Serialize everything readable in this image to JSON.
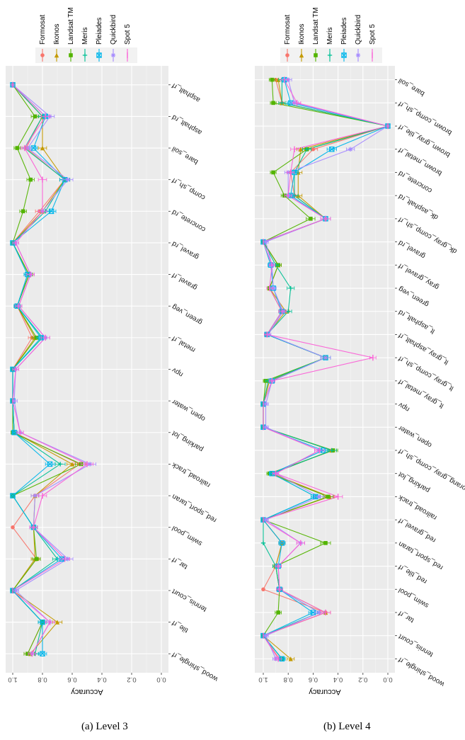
{
  "figure": {
    "legend_title": "",
    "legend_items": [
      {
        "name": "Formosat",
        "color": "#F8766D",
        "marker": "circle"
      },
      {
        "name": "Ikonos",
        "color": "#C49A00",
        "marker": "triangle"
      },
      {
        "name": "Landsat TM",
        "color": "#53B400",
        "marker": "square"
      },
      {
        "name": "Meris",
        "color": "#00C094",
        "marker": "plus"
      },
      {
        "name": "Pleiades",
        "color": "#00B6EB",
        "marker": "boxed-cross"
      },
      {
        "name": "Quickbird",
        "color": "#A58AFF",
        "marker": "asterisk"
      },
      {
        "name": "Spot 5",
        "color": "#FB61D7",
        "marker": "bar"
      }
    ]
  },
  "chart_data": [
    {
      "type": "line",
      "caption": "(a) Level 3",
      "ylabel": "Accuracy",
      "ylim": [
        0,
        1
      ],
      "yticks": [
        "0.0",
        "0.2",
        "0.4",
        "0.6",
        "0.8",
        "1.0"
      ],
      "grid": true,
      "error_bars": true,
      "categories": [
        "asphalt_rf",
        "asphalt_rd",
        "bare_soil",
        "comp_sh_rf",
        "concrete_rd",
        "gravel_rd",
        "gravel_rf",
        "green_veg",
        "metal_rf",
        "npv",
        "open_water",
        "parking_lot",
        "railroad_track",
        "red_sport_taran",
        "swim_pool",
        "tar_rf",
        "tennis_court",
        "tile_rf",
        "wood_shingle_rf"
      ],
      "series": [
        {
          "name": "Formosat",
          "values": [
            1.0,
            0.8,
            0.91,
            0.65,
            0.82,
            1.0,
            0.89,
            0.97,
            0.87,
            1.0,
            1.0,
            0.99,
            0.55,
            0.85,
            1.0,
            0.84,
            1.0,
            0.8,
            0.9
          ]
        },
        {
          "name": "Ikonos",
          "values": [
            1.0,
            0.8,
            0.8,
            0.65,
            0.8,
            1.0,
            0.89,
            0.97,
            0.85,
            1.0,
            1.0,
            0.99,
            0.6,
            0.85,
            0.86,
            0.85,
            1.0,
            0.7,
            0.88
          ]
        },
        {
          "name": "Landsat TM",
          "values": [
            1.0,
            0.85,
            0.97,
            0.88,
            0.93,
            1.0,
            0.89,
            0.97,
            0.84,
            1.0,
            1.0,
            1.0,
            0.54,
            1.0,
            0.86,
            0.84,
            1.0,
            0.8,
            0.9
          ]
        },
        {
          "name": "Meris",
          "values": [
            1.0,
            0.8,
            0.92,
            0.65,
            0.78,
            1.0,
            0.9,
            0.97,
            0.8,
            1.0,
            1.0,
            0.99,
            0.68,
            1.0,
            0.86,
            0.7,
            1.0,
            0.8,
            0.85
          ]
        },
        {
          "name": "Pleiades",
          "values": [
            1.0,
            0.78,
            0.86,
            0.65,
            0.74,
            1.0,
            0.9,
            0.97,
            0.81,
            1.0,
            1.0,
            0.99,
            0.75,
            1.0,
            0.86,
            0.67,
            1.0,
            0.8,
            0.8
          ]
        },
        {
          "name": "Quickbird",
          "values": [
            1.0,
            0.75,
            0.9,
            0.63,
            0.8,
            0.98,
            0.88,
            0.96,
            0.78,
            0.98,
            0.99,
            0.95,
            0.48,
            0.85,
            0.86,
            0.63,
            0.98,
            0.75,
            0.87
          ]
        },
        {
          "name": "Spot 5",
          "values": [
            1.0,
            0.78,
            0.92,
            0.8,
            0.8,
            0.98,
            0.88,
            0.96,
            0.78,
            0.98,
            1.0,
            0.95,
            0.5,
            0.8,
            0.86,
            0.65,
            1.0,
            0.75,
            0.87
          ]
        }
      ]
    },
    {
      "type": "line",
      "caption": "(b) Level 4",
      "ylabel": "Accuracy",
      "ylim": [
        0,
        1
      ],
      "yticks": [
        "0.0",
        "0.2",
        "0.4",
        "0.6",
        "0.8",
        "1.0"
      ],
      "grid": true,
      "error_bars": true,
      "categories": [
        "bare_soil",
        "brown_comp_sh_rf",
        "brown_gray_tile_rf",
        "brown_metal_rf",
        "concrete_rd",
        "dk_asphalt_rd",
        "dk_gray_comp_sh_rf",
        "gravel_rd",
        "gray_gravel_rf",
        "green_veg",
        "lt_asphalt_rd",
        "lt_gray_asphalt_rf",
        "lt_gray_comp_sh_rf",
        "lt_gray_metal_rf",
        "npv",
        "open_water",
        "orang_gray_comp_sh_rf",
        "parking_lot",
        "railroad_track",
        "red_gravel_rf",
        "red_sport_taran",
        "red_tile_rf",
        "swim_pool",
        "tar_rf",
        "tennis_court",
        "wood_shingle_rf"
      ],
      "series": [
        {
          "name": "Formosat",
          "values": [
            0.9,
            0.85,
            0.0,
            0.6,
            0.78,
            0.75,
            0.5,
            1.0,
            0.88,
            0.95,
            0.85,
            0.97,
            0.5,
            0.95,
            1.0,
            1.0,
            0.45,
            0.93,
            0.47,
            1.0,
            0.85,
            0.9,
            1.0,
            0.5,
            1.0,
            0.87
          ]
        },
        {
          "name": "Ikonos",
          "values": [
            0.88,
            0.85,
            0.0,
            0.7,
            0.72,
            0.72,
            0.5,
            1.0,
            0.88,
            0.95,
            0.82,
            0.97,
            0.5,
            0.95,
            1.0,
            1.0,
            0.45,
            0.93,
            0.47,
            1.0,
            0.85,
            0.9,
            0.87,
            0.5,
            1.0,
            0.78
          ]
        },
        {
          "name": "Landsat TM",
          "values": [
            0.93,
            0.92,
            0.0,
            0.65,
            0.92,
            0.83,
            0.62,
            1.0,
            0.88,
            0.95,
            0.85,
            0.97,
            0.5,
            0.98,
            1.0,
            1.0,
            0.44,
            0.95,
            0.48,
            1.0,
            0.5,
            0.9,
            0.87,
            0.88,
            1.0,
            0.85
          ]
        },
        {
          "name": "Meris",
          "values": [
            0.85,
            0.85,
            0.0,
            0.65,
            0.75,
            0.75,
            0.5,
            1.0,
            0.9,
            0.78,
            0.8,
            0.97,
            0.5,
            0.96,
            1.0,
            1.0,
            0.45,
            0.93,
            0.58,
            1.0,
            1.0,
            0.9,
            0.87,
            0.55,
            1.0,
            0.85
          ]
        },
        {
          "name": "Pleiades",
          "values": [
            0.83,
            0.78,
            0.0,
            0.45,
            0.75,
            0.78,
            0.5,
            1.0,
            0.94,
            0.92,
            0.85,
            0.97,
            0.5,
            0.93,
            1.0,
            1.0,
            0.52,
            0.93,
            0.58,
            1.0,
            0.85,
            0.88,
            0.87,
            0.6,
            1.0,
            0.85
          ]
        },
        {
          "name": "Quickbird",
          "values": [
            0.8,
            0.75,
            0.0,
            0.3,
            0.8,
            0.8,
            0.5,
            0.98,
            0.93,
            0.92,
            0.84,
            0.96,
            0.5,
            0.93,
            0.98,
            0.98,
            0.55,
            0.9,
            0.55,
            0.98,
            0.7,
            0.88,
            0.87,
            0.55,
            0.98,
            0.9
          ]
        },
        {
          "name": "Spot 5",
          "values": [
            0.83,
            0.73,
            0.0,
            0.75,
            0.78,
            0.8,
            0.5,
            1.0,
            0.93,
            0.95,
            0.85,
            0.97,
            0.12,
            0.93,
            1.0,
            1.0,
            0.55,
            0.9,
            0.4,
            1.0,
            0.7,
            0.88,
            0.87,
            0.5,
            1.0,
            0.88
          ]
        }
      ]
    }
  ]
}
